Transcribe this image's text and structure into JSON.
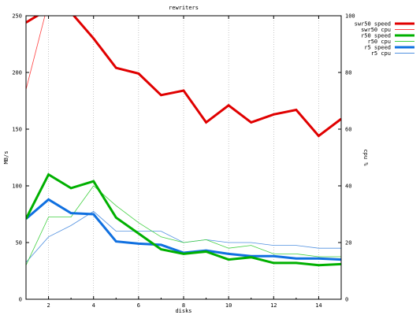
{
  "chart_data": {
    "type": "line",
    "title": "rewriters",
    "xlabel": "disks",
    "ylabel": "MB/s",
    "y2label": "cpu %",
    "xlim": [
      1,
      15
    ],
    "ylim": [
      0,
      250
    ],
    "y2lim": [
      0,
      100
    ],
    "x_ticks": [
      2,
      4,
      6,
      8,
      10,
      12,
      14
    ],
    "y_ticks": [
      0,
      50,
      100,
      150,
      200,
      250
    ],
    "y2_ticks": [
      0,
      20,
      40,
      60,
      80,
      100
    ],
    "grid": {
      "x": true,
      "y": false
    },
    "legend_position": "top-right",
    "x": [
      1,
      2,
      3,
      4,
      5,
      6,
      7,
      8,
      9,
      10,
      11,
      12,
      13,
      14,
      15
    ],
    "series": [
      {
        "name": "swr50 speed",
        "axis": "left",
        "color": "#e00000",
        "width": "thick",
        "values": [
          244,
          256,
          253,
          230,
          204,
          199,
          180,
          184,
          156,
          171,
          156,
          163,
          167,
          144,
          159
        ]
      },
      {
        "name": "swr50 cpu",
        "axis": "right",
        "color": "#ff4040",
        "width": "thin",
        "values": [
          74,
          105,
          null,
          null,
          null,
          null,
          null,
          null,
          null,
          null,
          null,
          null,
          null,
          null,
          null
        ]
      },
      {
        "name": "r50 speed",
        "axis": "left",
        "color": "#00b000",
        "width": "thick",
        "values": [
          71,
          110,
          98,
          104,
          72,
          58,
          44,
          40,
          42,
          35,
          37,
          32,
          32,
          30,
          31
        ]
      },
      {
        "name": "r50 cpu",
        "axis": "right",
        "color": "#40d040",
        "width": "thin",
        "values": [
          12,
          29,
          29,
          40,
          33,
          27,
          22,
          20,
          21,
          18,
          19,
          16,
          16,
          15,
          15
        ]
      },
      {
        "name": "r5 speed",
        "axis": "left",
        "color": "#1070e0",
        "width": "thick",
        "values": [
          71,
          88,
          76,
          75,
          51,
          49,
          48,
          41,
          43,
          40,
          38,
          38,
          36,
          36,
          35
        ]
      },
      {
        "name": "r5 cpu",
        "axis": "right",
        "color": "#5090e0",
        "width": "thin",
        "values": [
          13,
          22,
          26,
          31,
          24,
          24,
          24,
          20,
          21,
          20,
          20,
          19,
          19,
          18,
          18
        ]
      }
    ]
  }
}
